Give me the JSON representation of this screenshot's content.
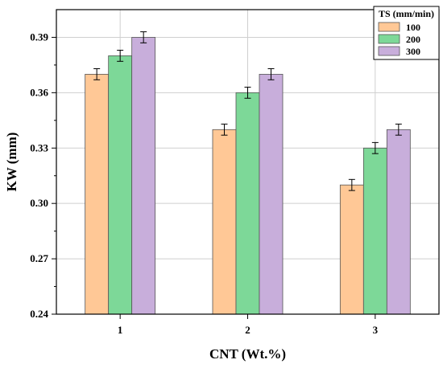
{
  "chart_data": {
    "type": "bar",
    "title": "",
    "xlabel": "CNT (Wt.%)",
    "ylabel": "KW (mm)",
    "categories": [
      "1",
      "2",
      "3"
    ],
    "ylim": [
      0.24,
      0.405
    ],
    "yticks": [
      "0.24",
      "0.27",
      "0.30",
      "0.33",
      "0.36",
      "0.39"
    ],
    "grid": true,
    "legend": {
      "title": "TS (mm/min)",
      "position": "top-right"
    },
    "series": [
      {
        "name": "100",
        "color": "#FFC896",
        "values": [
          0.37,
          0.34,
          0.31
        ],
        "errors": [
          0.003,
          0.003,
          0.003
        ]
      },
      {
        "name": "200",
        "color": "#7DD898",
        "values": [
          0.38,
          0.36,
          0.33
        ],
        "errors": [
          0.003,
          0.003,
          0.003
        ]
      },
      {
        "name": "300",
        "color": "#C8AEDB",
        "values": [
          0.39,
          0.37,
          0.34
        ],
        "errors": [
          0.003,
          0.003,
          0.003
        ]
      }
    ]
  }
}
